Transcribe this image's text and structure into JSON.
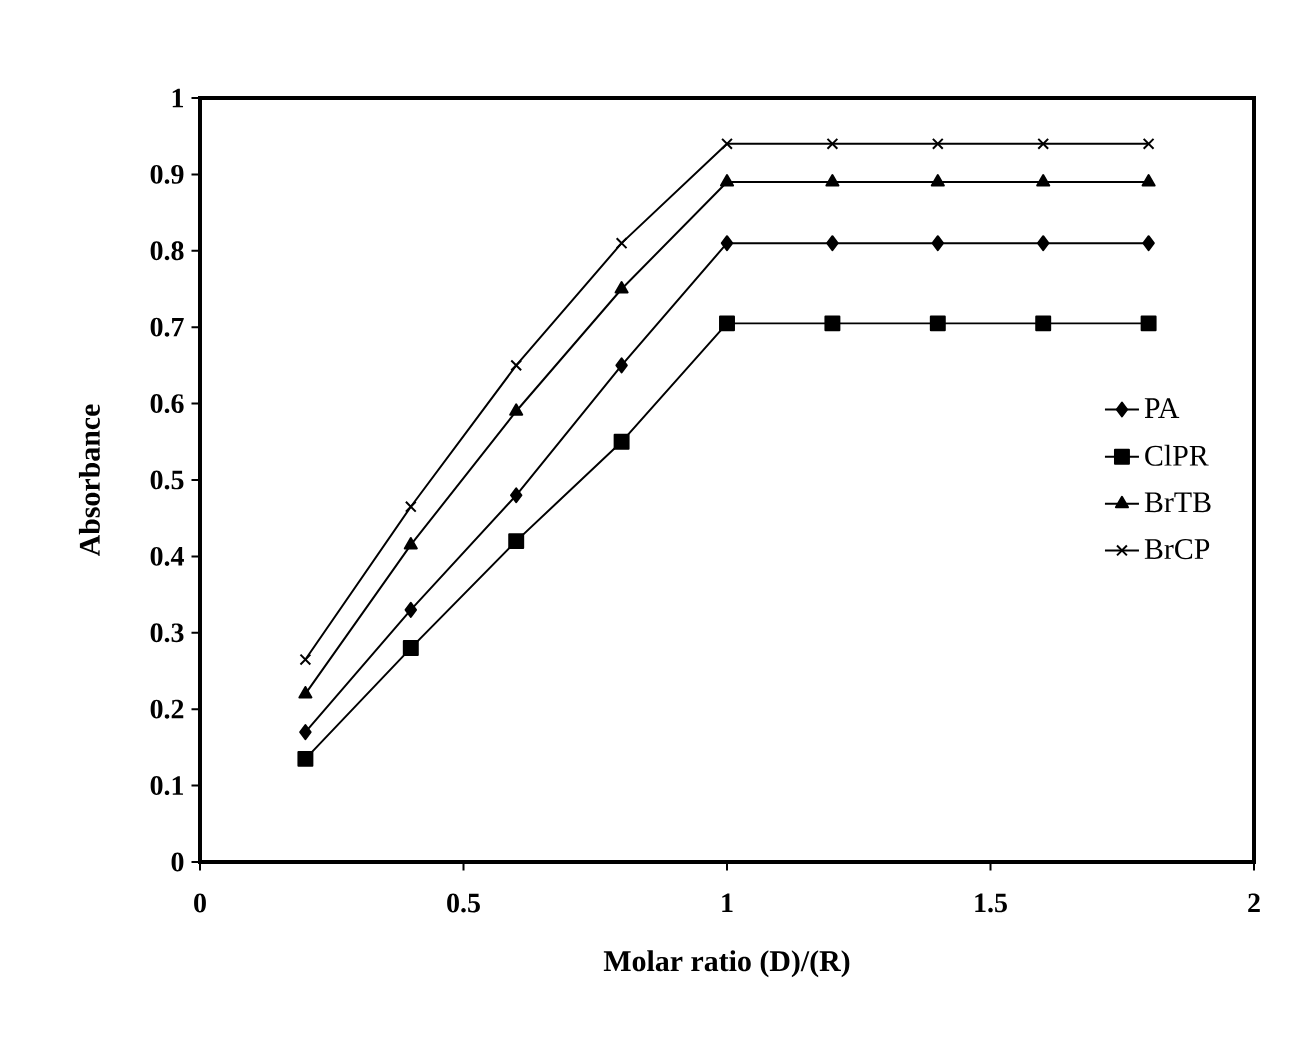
{
  "chart_data": {
    "type": "line",
    "xlabel": "Molar ratio (D)/(R)",
    "ylabel": "Absorbance",
    "x": [
      0.2,
      0.4,
      0.6,
      0.8,
      1.0,
      1.2,
      1.4,
      1.6,
      1.8
    ],
    "series": [
      {
        "name": "PA",
        "color": "#000000",
        "marker": "diamond",
        "values": [
          0.17,
          0.33,
          0.48,
          0.65,
          0.81,
          0.81,
          0.81,
          0.81,
          0.81
        ]
      },
      {
        "name": "ClPR",
        "color": "#000000",
        "marker": "square",
        "values": [
          0.135,
          0.28,
          0.42,
          0.55,
          0.705,
          0.705,
          0.705,
          0.705,
          0.705
        ]
      },
      {
        "name": "BrTB",
        "color": "#000000",
        "marker": "triangle",
        "values": [
          0.22,
          0.415,
          0.59,
          0.75,
          0.89,
          0.89,
          0.89,
          0.89,
          0.89
        ]
      },
      {
        "name": "BrCP",
        "color": "#000000",
        "marker": "cross",
        "values": [
          0.265,
          0.465,
          0.65,
          0.81,
          0.94,
          0.94,
          0.94,
          0.94,
          0.94
        ]
      }
    ],
    "xlim": [
      0,
      2
    ],
    "xticks": [
      0,
      0.5,
      1,
      1.5,
      2
    ],
    "ylim": [
      0,
      1
    ],
    "yticks": [
      0,
      0.1,
      0.2,
      0.3,
      0.4,
      0.5,
      0.6,
      0.7,
      0.8,
      0.9,
      1
    ],
    "grid": false,
    "legend": "right",
    "line_style": "solid"
  }
}
